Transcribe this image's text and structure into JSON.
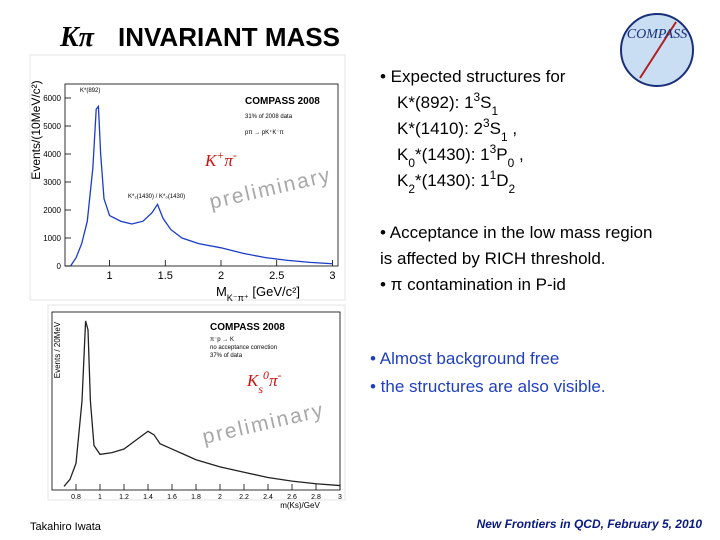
{
  "header": {
    "title_symbol": "Kπ",
    "title": "INVARIANT MASS",
    "logo": "COMPASS"
  },
  "bullets": [
    {
      "color": "#000000",
      "lines": [
        [
          {
            "t": "• Expected structures for"
          }
        ],
        [
          {
            "t": "K*(892): 1"
          },
          {
            "sup": "3"
          },
          {
            "t": "S"
          },
          {
            "sub": "1"
          }
        ],
        [
          {
            "t": "K*(1410): 2"
          },
          {
            "sup": "3"
          },
          {
            "t": "S"
          },
          {
            "sub": "1"
          },
          {
            "t": " ,"
          }
        ],
        [
          {
            "t": "K"
          },
          {
            "sub": "0"
          },
          {
            "t": "*(1430): 1"
          },
          {
            "sup": "3"
          },
          {
            "t": "P"
          },
          {
            "sub": "0"
          },
          {
            "t": " ,"
          }
        ],
        [
          {
            "t": "K"
          },
          {
            "sub": "2"
          },
          {
            "t": "*(1430): 1"
          },
          {
            "sup": "1"
          },
          {
            "t": "D"
          },
          {
            "sub": "2"
          }
        ]
      ]
    },
    {
      "color": "#000000",
      "lines": [
        [
          {
            "t": "• Acceptance in the low mass region"
          }
        ],
        [
          {
            "t": "is affected by  RICH threshold."
          }
        ],
        [
          {
            "t": "• π contamination in P-id"
          }
        ]
      ]
    },
    {
      "color": "#1f3fbf",
      "lines": [
        [
          {
            "t": "• Almost background free"
          }
        ],
        [
          {
            "t": "• the structures are also visible."
          }
        ]
      ]
    }
  ],
  "footer": {
    "author": "Takahiro Iwata",
    "event": "New Frontiers in QCD, February 5, 2010"
  },
  "chart_data": [
    {
      "type": "line",
      "color": "#1a3cc8",
      "y_label": "Events/(10MeV/c²)",
      "x_label": [
        {
          "t": "M"
        },
        {
          "sub": "K⁻π⁺"
        },
        {
          "t": " [GeV/c²]"
        }
      ],
      "experiment": "COMPASS 2008",
      "notes": [
        "31% of 2008 data",
        "pπ → pK⁺K⁻π"
      ],
      "peak_labels": [
        "K*(892)",
        "K*₂(1430) / K*₀(1430)"
      ],
      "label": [
        {
          "t": "K"
        },
        {
          "sup": "+"
        },
        {
          "t": "π"
        },
        {
          "sup": "-"
        }
      ],
      "watermark": "preliminary",
      "x": [
        0.65,
        0.7,
        0.75,
        0.8,
        0.85,
        0.88,
        0.9,
        0.92,
        0.95,
        1.0,
        1.1,
        1.2,
        1.3,
        1.38,
        1.43,
        1.48,
        1.55,
        1.65,
        1.8,
        2.0,
        2.2,
        2.4,
        2.6,
        2.8,
        3.0
      ],
      "values": [
        0,
        300,
        800,
        1600,
        3500,
        5600,
        5700,
        4000,
        2400,
        1800,
        1600,
        1500,
        1600,
        1900,
        2200,
        1700,
        1300,
        1000,
        800,
        650,
        450,
        300,
        200,
        130,
        80
      ],
      "xlim": [
        0.6,
        3.05
      ],
      "ylim": [
        0,
        6500
      ],
      "xticks": [
        1,
        1.5,
        2,
        2.5,
        3
      ],
      "yticks": [
        0,
        1000,
        2000,
        3000,
        4000,
        5000,
        6000
      ]
    },
    {
      "type": "line",
      "color": "#222222",
      "y_label": "Events / 20MeV",
      "x_label": [
        {
          "t": "m(Ks)/GeV"
        }
      ],
      "experiment": "COMPASS 2008",
      "notes": [
        "π⁻p → K",
        "no acceptance correction",
        "37% of data"
      ],
      "label": [
        {
          "t": "K"
        },
        {
          "sub": "s"
        },
        {
          "sup": "0"
        },
        {
          "t": "π"
        },
        {
          "sup": "-"
        }
      ],
      "watermark": "preliminary",
      "x": [
        0.7,
        0.75,
        0.8,
        0.85,
        0.88,
        0.9,
        0.92,
        0.95,
        1.0,
        1.1,
        1.2,
        1.3,
        1.4,
        1.45,
        1.5,
        1.6,
        1.7,
        1.8,
        2.0,
        2.2,
        2.4,
        2.6,
        2.8,
        3.0
      ],
      "values": [
        20,
        60,
        150,
        500,
        950,
        900,
        500,
        250,
        200,
        210,
        230,
        280,
        330,
        310,
        260,
        230,
        200,
        170,
        130,
        100,
        70,
        50,
        35,
        25
      ],
      "xlim": [
        0.6,
        3.0
      ],
      "ylim": [
        0,
        1000
      ],
      "xticks": [
        0.8,
        1,
        1.2,
        1.4,
        1.6,
        1.8,
        2,
        2.2,
        2.4,
        2.6,
        2.8,
        3
      ]
    }
  ]
}
